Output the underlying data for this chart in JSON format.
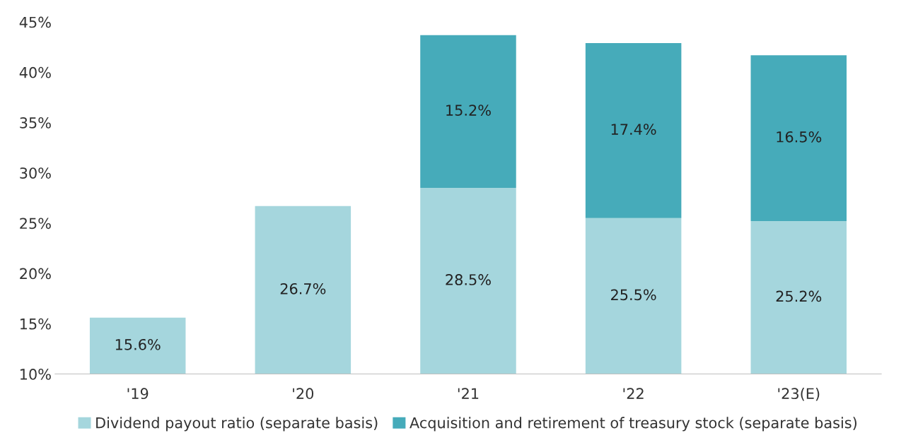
{
  "chart_data": {
    "type": "bar",
    "stacked": true,
    "categories": [
      "'19",
      "'20",
      "'21",
      "'22",
      "'23(E)"
    ],
    "series": [
      {
        "name": "Dividend payout ratio (separate basis)",
        "color": "#a5d6dd",
        "values": [
          15.6,
          26.7,
          28.5,
          25.5,
          25.2
        ],
        "value_labels": [
          "15.6%",
          "26.7%",
          "28.5%",
          "25.5%",
          "25.2%"
        ]
      },
      {
        "name": "Acquisition and retirement of treasury stock (separate basis)",
        "color": "#46abba",
        "values": [
          null,
          null,
          15.2,
          17.4,
          16.5
        ],
        "value_labels": [
          null,
          null,
          "15.2%",
          "17.4%",
          "16.5%"
        ]
      }
    ],
    "ylim": [
      10,
      45
    ],
    "yticks": [
      {
        "value": 10,
        "label": "10%"
      },
      {
        "value": 15,
        "label": "15%"
      },
      {
        "value": 20,
        "label": "20%"
      },
      {
        "value": 25,
        "label": "25%"
      },
      {
        "value": 30,
        "label": "30%"
      },
      {
        "value": 35,
        "label": "35%"
      },
      {
        "value": 40,
        "label": "40%"
      },
      {
        "value": 45,
        "label": "45%"
      }
    ],
    "grid": false,
    "legend": "bottom"
  }
}
